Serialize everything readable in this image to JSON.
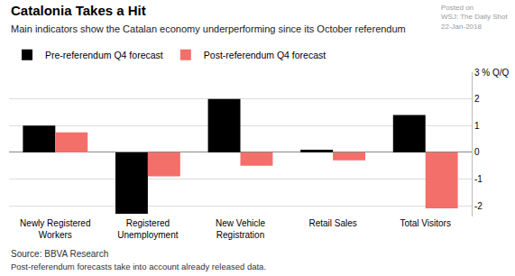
{
  "chart_data": {
    "type": "bar",
    "title": "Catalonia Takes a Hit",
    "subtitle": "Main indicators show the Catalan economy underperforming since its October referendum",
    "watermark": [
      "Posted on",
      "WSJ: The Daily Shot",
      "22-Jan-2018"
    ],
    "source": "Source: BBVA Research",
    "note": "Post-referendum forecasts take into account already released data.",
    "categories": [
      "Newly Registered Workers",
      "Registered Unemployment",
      "New Vehicle Registration",
      "Retail Sales",
      "Total Visitors"
    ],
    "series": [
      {
        "name": "Pre-referendum Q4 forecast",
        "color": "#000000",
        "values": [
          1.0,
          -2.3,
          2.0,
          0.1,
          1.4
        ]
      },
      {
        "name": "Post-referendum Q4 forecast",
        "color": "#f36f6a",
        "values": [
          0.75,
          -0.9,
          -0.5,
          -0.3,
          -2.1
        ]
      }
    ],
    "ylim": [
      -2.4,
      3
    ],
    "yticks": [
      -2,
      -1,
      0,
      1,
      2,
      {
        "value": 3,
        "label": "3 % Q/Q"
      }
    ],
    "grid": true,
    "legend": "top left"
  }
}
